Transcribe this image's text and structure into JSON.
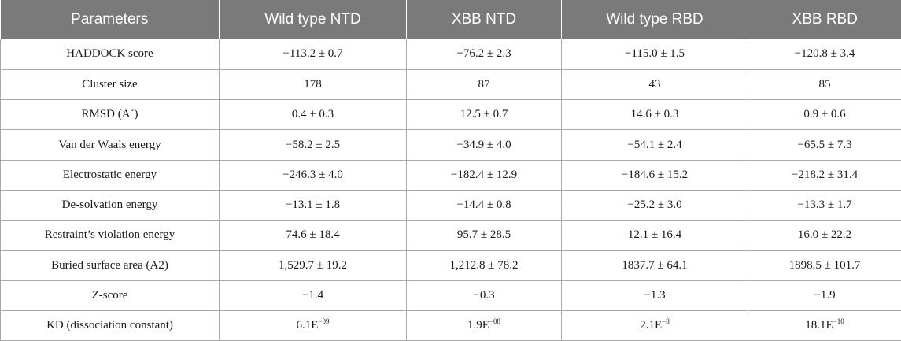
{
  "table": {
    "headers": [
      "Parameters",
      "Wild type NTD",
      "XBB NTD",
      "Wild type RBD",
      "XBB RBD"
    ],
    "rows": [
      {
        "label": "HADDOCK score",
        "values": [
          "−113.2 ± 0.7",
          "−76.2 ± 2.3",
          "−115.0 ± 1.5",
          "−120.8 ± 3.4"
        ]
      },
      {
        "label": "Cluster size",
        "values": [
          "178",
          "87",
          "43",
          "85"
        ]
      },
      {
        "label": "RMSD (A˚)",
        "values": [
          "0.4 ± 0.3",
          "12.5 ± 0.7",
          "14.6 ± 0.3",
          "0.9 ± 0.6"
        ]
      },
      {
        "label": "Van der Waals energy",
        "values": [
          "−58.2 ± 2.5",
          "−34.9 ± 4.0",
          "−54.1 ± 2.4",
          "−65.5 ± 7.3"
        ]
      },
      {
        "label": "Electrostatic energy",
        "values": [
          "−246.3 ± 4.0",
          "−182.4 ± 12.9",
          "−184.6 ± 15.2",
          "−218.2 ± 31.4"
        ]
      },
      {
        "label": "De-solvation energy",
        "values": [
          "−13.1 ± 1.8",
          "−14.4 ± 0.8",
          "−25.2 ± 3.0",
          "−13.3 ± 1.7"
        ]
      },
      {
        "label": "Restraint’s violation energy",
        "values": [
          "74.6 ± 18.4",
          "95.7 ± 28.5",
          "12.1 ± 16.4",
          "16.0 ± 22.2"
        ]
      },
      {
        "label": "Buried surface area (A2)",
        "values": [
          "1,529.7 ± 19.2",
          "1,212.8 ± 78.2",
          "1837.7 ± 64.1",
          "1898.5 ± 101.7"
        ]
      },
      {
        "label": "Z-score",
        "values": [
          "−1.4",
          "−0.3",
          "−1.3",
          "−1.9"
        ]
      }
    ],
    "kd_row": {
      "label": "KD (dissociation constant)",
      "values": [
        {
          "base": "6.1E",
          "exp": "−09"
        },
        {
          "base": "1.9E",
          "exp": "−08"
        },
        {
          "base": "2.1E",
          "exp": "−8"
        },
        {
          "base": "18.1E",
          "exp": "−10"
        }
      ]
    }
  }
}
